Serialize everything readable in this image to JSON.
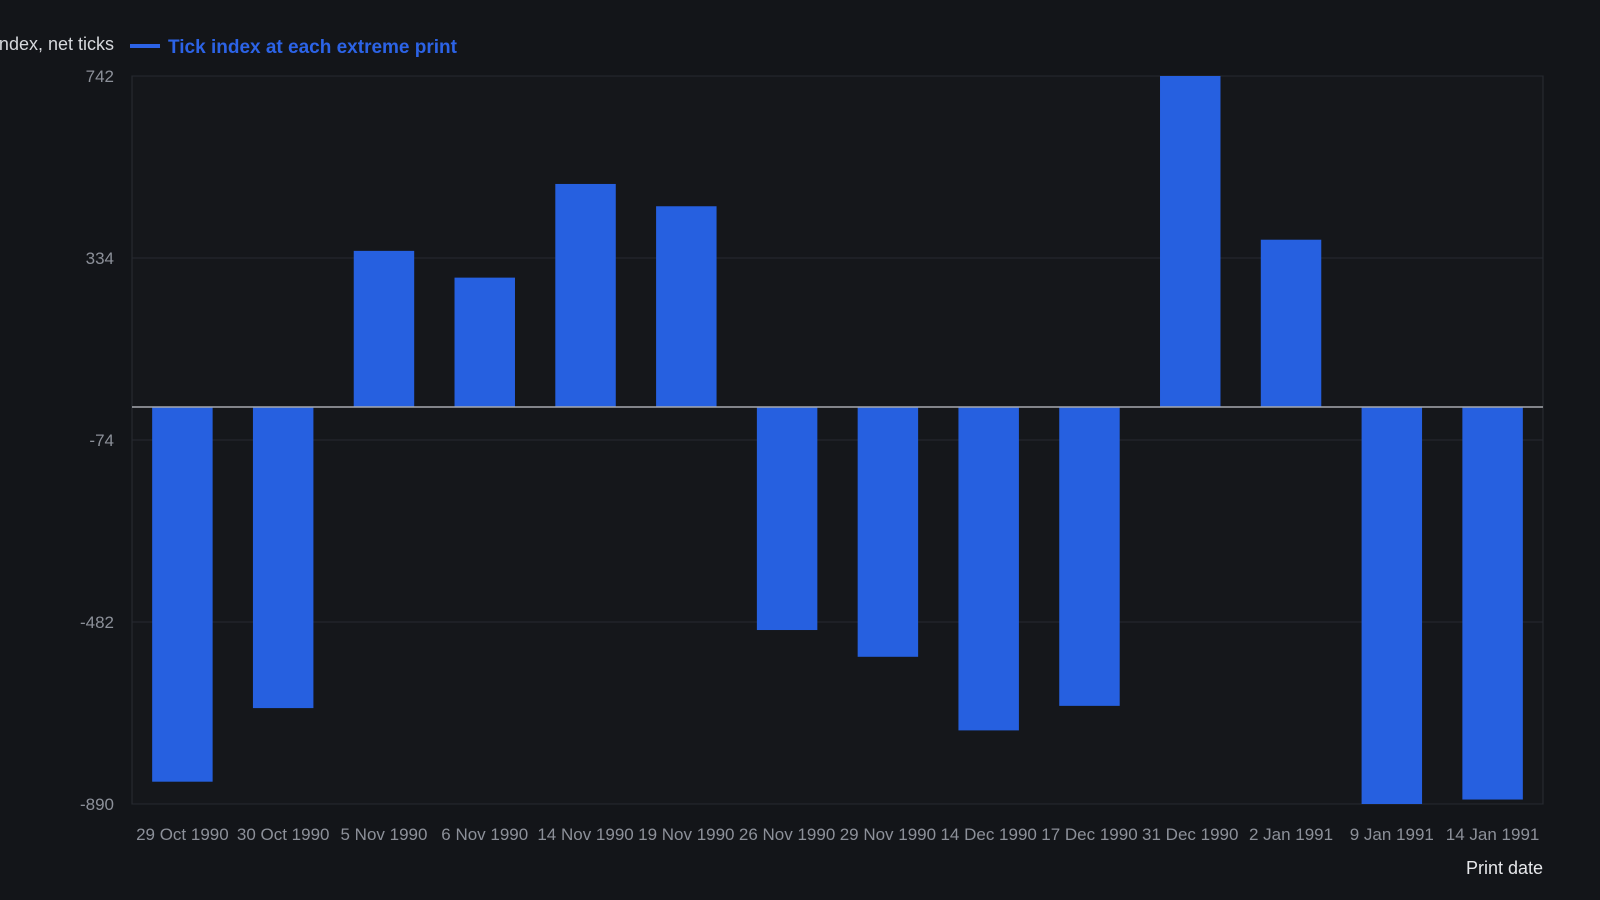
{
  "chart_data": {
    "type": "bar",
    "ylabel": "Tick index, net ticks",
    "xlabel": "Print date",
    "categories": [
      "29 Oct 1990",
      "30 Oct 1990",
      "5 Nov 1990",
      "6 Nov 1990",
      "14 Nov 1990",
      "19 Nov 1990",
      "26 Nov 1990",
      "29 Nov 1990",
      "14 Dec 1990",
      "17 Dec 1990",
      "31 Dec 1990",
      "2 Jan 1991",
      "9 Jan 1991",
      "14 Jan 1991"
    ],
    "series": [
      {
        "name": "Tick index at each extreme print",
        "values": [
          -840,
          -675,
          350,
          290,
          500,
          450,
          -500,
          -560,
          -725,
          -670,
          742,
          375,
          -890,
          -880
        ],
        "color": "#2660e0"
      }
    ],
    "ylim": [
      -890,
      742
    ],
    "yticks": [
      742,
      334,
      -74,
      -482,
      -890
    ],
    "grid": true,
    "legend": "top-left"
  }
}
